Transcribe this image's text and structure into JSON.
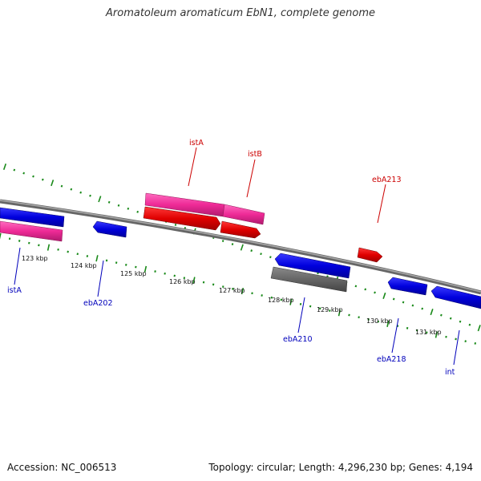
{
  "title": "Aromatoleum aromaticum EbN1, complete genome",
  "footer": {
    "accession": "Accession: NC_006513",
    "topology": "Topology: circular; Length: 4,296,230 bp; Genes: 4,194"
  },
  "colors": {
    "red": "#e00000",
    "pink": "#ee2a96",
    "blue": "#0000dd",
    "gray": "#666666",
    "backbone": "#808080",
    "ticks": "#1a8a1a",
    "label_red": "#cc0000",
    "label_blue": "#0000bb"
  },
  "kbp_ticks": [
    "123 kbp",
    "124 kbp",
    "125 kbp",
    "126 kbp",
    "127 kbp",
    "128 kbp",
    "129 kbp",
    "130 kbp",
    "131 kbp"
  ],
  "genes": [
    {
      "name": "istA",
      "color": "red"
    },
    {
      "name": "istB",
      "color": "red"
    },
    {
      "name": "ebA213",
      "color": "red"
    },
    {
      "name": "istA",
      "color": "blue"
    },
    {
      "name": "ebA202",
      "color": "blue"
    },
    {
      "name": "ebA210",
      "color": "blue"
    },
    {
      "name": "ebA218",
      "color": "blue"
    },
    {
      "name": "int",
      "color": "blue"
    }
  ]
}
